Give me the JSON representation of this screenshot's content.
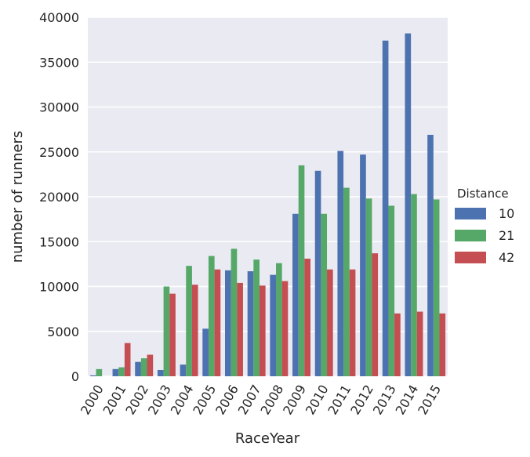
{
  "chart_data": {
    "type": "bar",
    "xlabel": "RaceYear",
    "ylabel": "number of runners",
    "ylim": [
      0,
      40000
    ],
    "yticks": [
      0,
      5000,
      10000,
      15000,
      20000,
      25000,
      30000,
      35000,
      40000
    ],
    "grid": true,
    "legend_title": "Distance",
    "legend_placement": "right",
    "categories": [
      "2000",
      "2001",
      "2002",
      "2003",
      "2004",
      "2005",
      "2006",
      "2007",
      "2008",
      "2009",
      "2010",
      "2011",
      "2012",
      "2013",
      "2014",
      "2015"
    ],
    "series": [
      {
        "name": "10",
        "color": "#4c72b0",
        "values": [
          100,
          800,
          1600,
          700,
          1300,
          5300,
          11800,
          11700,
          11300,
          18100,
          22900,
          25100,
          24700,
          37400,
          38200,
          26900
        ]
      },
      {
        "name": "21",
        "color": "#55a868",
        "values": [
          800,
          1000,
          2000,
          10000,
          12300,
          13400,
          14200,
          13000,
          12600,
          23500,
          18100,
          21000,
          19800,
          19000,
          20300,
          19700
        ]
      },
      {
        "name": "42",
        "color": "#c44e52",
        "values": [
          0,
          3700,
          2400,
          9200,
          10200,
          11900,
          10400,
          10100,
          10600,
          13100,
          11900,
          11900,
          13700,
          7000,
          7200,
          7000
        ]
      }
    ]
  }
}
